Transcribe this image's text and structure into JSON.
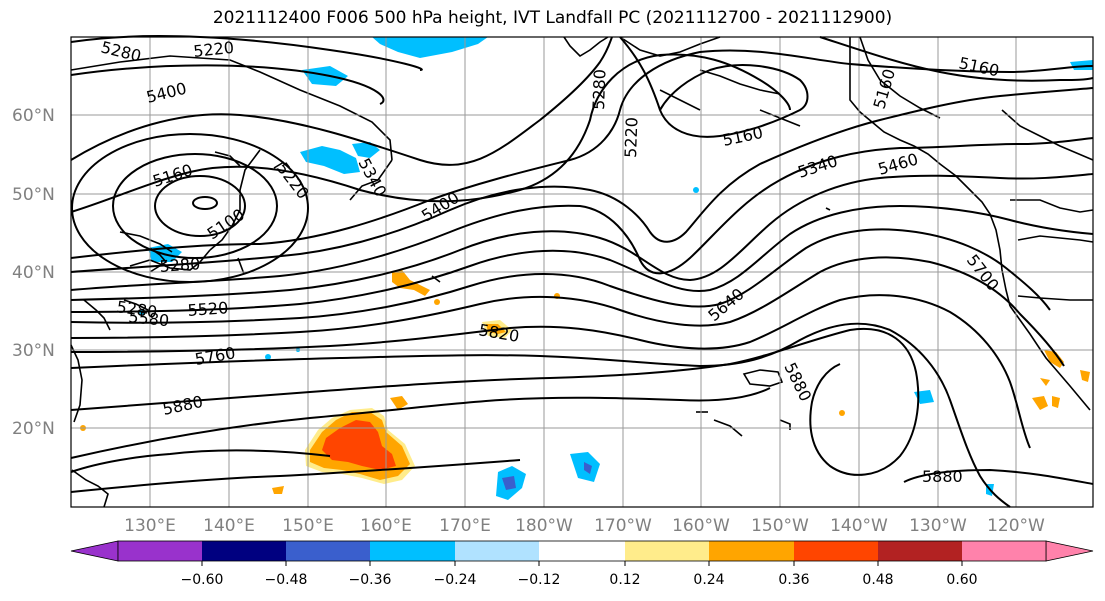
{
  "title": "2021112400 F006 500 hPa height, IVT Landfall PC (2021112700 - 2021112900)",
  "lat_labels": [
    "60°N",
    "50°N",
    "40°N",
    "30°N",
    "20°N"
  ],
  "lon_labels": [
    "130°E",
    "140°E",
    "150°E",
    "160°E",
    "170°E",
    "180°W",
    "170°W",
    "160°W",
    "150°W",
    "140°W",
    "130°W",
    "120°W"
  ],
  "contour_labels": [
    "5280",
    "5220",
    "5400",
    "5160",
    "5100",
    "5220",
    "5340",
    "5400",
    "5280",
    "5280",
    "5520",
    "5580",
    "5760",
    "5880",
    "5820",
    "5640",
    "5880",
    "5880",
    "5280",
    "5220",
    "5160",
    "5340",
    "5460",
    "5160",
    "5160",
    "5700"
  ],
  "colorbar": {
    "tick_labels": [
      "−0.60",
      "−0.48",
      "−0.36",
      "−0.24",
      "−0.12",
      "0.12",
      "0.24",
      "0.36",
      "0.48",
      "0.60"
    ],
    "colors": [
      "#9932CC",
      "#000080",
      "#3A5FCD",
      "#00BFFF",
      "#B0E2FF",
      "#FFFFFF",
      "#FFEC8B",
      "#FFA500",
      "#FF4500",
      "#B22222",
      "#FF82AB"
    ]
  }
}
